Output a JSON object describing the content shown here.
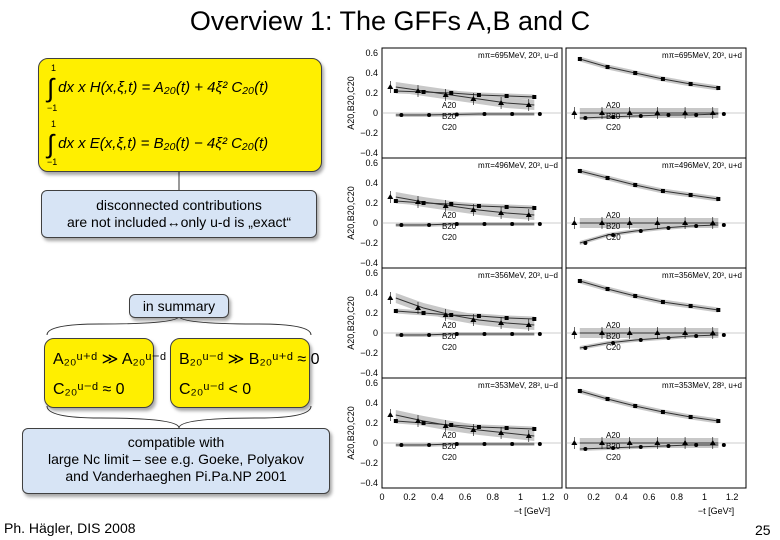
{
  "slide": {
    "title": "Overview 1: The GFFs A,B and C",
    "footer": "Ph. Hägler, DIS 2008",
    "page_number": "25"
  },
  "equations": {
    "eq1": "dx x H(x,ξ,t) = A₂₀(t) + 4ξ² C₂₀(t)",
    "eq2": "dx x E(x,ξ,t) = B₂₀(t) − 4ξ² C₂₀(t)",
    "upper_limit": "1",
    "lower_limit": "−1"
  },
  "notes": {
    "disconnected_line1": "disconnected contributions",
    "disconnected_line2": "are not included↔only u-d is „exact“",
    "summary": "in summary",
    "compatible_line1": "compatible with",
    "compatible_line2": "large Nc limit – see e.g. Goeke, Polyakov",
    "compatible_line3": "and Vanderhaeghen Pi.Pa.NP 2001"
  },
  "summary_relations": {
    "left_top": "A₂₀ᵘ⁺ᵈ ≫ A₂₀ᵘ⁻ᵈ",
    "left_bottom": "C₂₀ᵘ⁻ᵈ ≈ 0",
    "right_top": "B₂₀ᵘ⁻ᵈ ≫ B₂₀ᵘ⁺ᵈ ≈ 0",
    "right_bottom": "C₂₀ᵘ⁻ᵈ < 0"
  },
  "chart_data": {
    "type": "scatter",
    "ylabel": "A20,B20,C20",
    "xlabel": "−t [GeV²]",
    "xlim": [
      0,
      1.3
    ],
    "ylim": [
      -0.45,
      0.65
    ],
    "x_ticks": [
      "0",
      "0.2",
      "0.4",
      "0.6",
      "0.8",
      "1",
      "1.2"
    ],
    "y_ticks": [
      "0.6",
      "0.4",
      "0.2",
      "0",
      "−0.2",
      "−0.4"
    ],
    "legend_labels": [
      "A20",
      "B20",
      "C20"
    ],
    "panels": [
      {
        "label": "mπ=695MeV, 20³, u−d",
        "A20": [
          0.22,
          0.21,
          0.2,
          0.18,
          0.17,
          0.16
        ],
        "B20": [
          0.26,
          0.22,
          0.18,
          0.14,
          0.1,
          0.08
        ],
        "C20": [
          -0.02,
          -0.02,
          -0.015,
          -0.01,
          -0.01,
          -0.01
        ]
      },
      {
        "label": "mπ=695MeV, 20³, u+d",
        "A20": [
          0.54,
          0.46,
          0.4,
          0.34,
          0.29,
          0.25
        ],
        "B20": [
          0.0,
          0.0,
          0.0,
          0.0,
          0.0,
          0.0
        ],
        "C20": [
          -0.05,
          -0.04,
          -0.03,
          -0.02,
          -0.02,
          -0.01
        ]
      },
      {
        "label": "mπ=496MeV, 20³, u−d",
        "A20": [
          0.22,
          0.2,
          0.19,
          0.17,
          0.16,
          0.15
        ],
        "B20": [
          0.26,
          0.21,
          0.17,
          0.13,
          0.1,
          0.08
        ],
        "C20": [
          -0.02,
          -0.02,
          -0.01,
          -0.01,
          -0.01,
          -0.01
        ]
      },
      {
        "label": "mπ=496MeV, 20³, u+d",
        "A20": [
          0.52,
          0.45,
          0.38,
          0.32,
          0.28,
          0.24
        ],
        "B20": [
          0.0,
          0.0,
          0.0,
          0.0,
          0.0,
          0.0
        ],
        "C20": [
          -0.2,
          -0.12,
          -0.08,
          -0.05,
          -0.03,
          -0.02
        ]
      },
      {
        "label": "mπ=356MeV, 20³, u−d",
        "A20": [
          0.22,
          0.2,
          0.18,
          0.17,
          0.15,
          0.14
        ],
        "B20": [
          0.35,
          0.25,
          0.18,
          0.13,
          0.1,
          0.08
        ],
        "C20": [
          -0.02,
          -0.02,
          -0.01,
          -0.01,
          -0.01,
          -0.01
        ]
      },
      {
        "label": "mπ=356MeV, 20³, u+d",
        "A20": [
          0.52,
          0.44,
          0.37,
          0.31,
          0.27,
          0.23
        ],
        "B20": [
          0.0,
          0.0,
          0.0,
          0.0,
          0.0,
          0.0
        ],
        "C20": [
          -0.15,
          -0.1,
          -0.07,
          -0.05,
          -0.03,
          -0.02
        ]
      },
      {
        "label": "mπ=353MeV, 28³, u−d",
        "A20": [
          0.22,
          0.2,
          0.18,
          0.16,
          0.15,
          0.14
        ],
        "B20": [
          0.28,
          0.22,
          0.17,
          0.13,
          0.1,
          0.07
        ],
        "C20": [
          -0.02,
          -0.02,
          -0.01,
          -0.01,
          -0.01,
          -0.01
        ]
      },
      {
        "label": "mπ=353MeV, 28³, u+d",
        "A20": [
          0.52,
          0.44,
          0.37,
          0.31,
          0.26,
          0.22
        ],
        "B20": [
          0.0,
          0.0,
          0.0,
          0.0,
          0.0,
          0.0
        ],
        "C20": [
          -0.06,
          -0.05,
          -0.04,
          -0.03,
          -0.02,
          -0.02
        ]
      }
    ]
  }
}
